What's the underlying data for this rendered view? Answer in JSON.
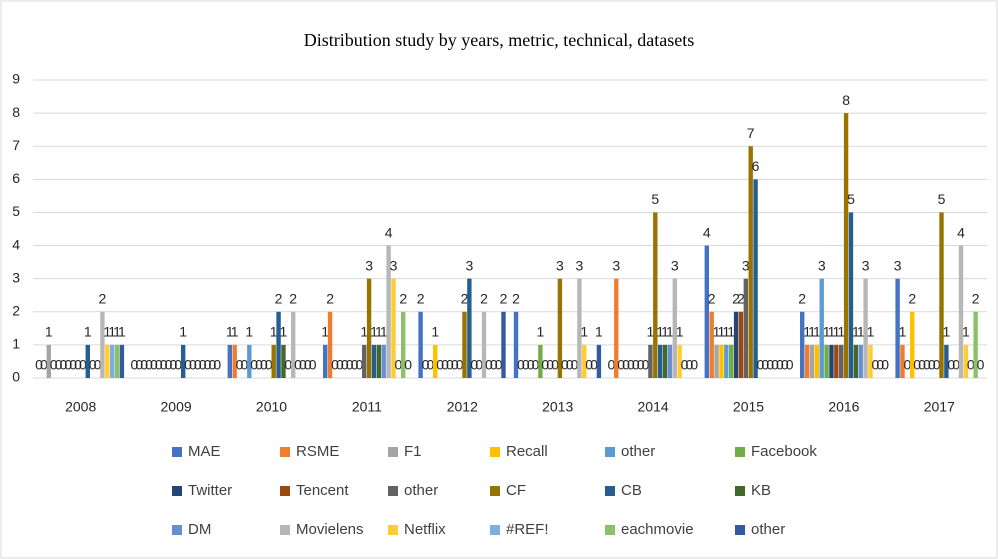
{
  "chart_data": {
    "type": "bar",
    "title": "Distribution study by years, metric, technical, datasets",
    "categories": [
      "2008",
      "2009",
      "2010",
      "2011",
      "2012",
      "2013",
      "2014",
      "2015",
      "2016",
      "2017"
    ],
    "ylim": [
      0,
      9
    ],
    "yticks": [
      0,
      1,
      2,
      3,
      4,
      5,
      6,
      7,
      8,
      9
    ],
    "grid": true,
    "legend": "bottom",
    "series": [
      {
        "name": "MAE",
        "color": "#4472c4",
        "values": [
          0,
          0,
          1,
          1,
          2,
          2,
          0,
          4,
          2,
          3
        ]
      },
      {
        "name": "RSME",
        "color": "#ed7d31",
        "values": [
          0,
          0,
          1,
          2,
          0,
          0,
          3,
          2,
          1,
          1
        ]
      },
      {
        "name": "F1",
        "color": "#a5a5a5",
        "values": [
          1,
          0,
          0,
          0,
          0,
          0,
          0,
          1,
          1,
          0
        ]
      },
      {
        "name": "Recall",
        "color": "#ffc000",
        "values": [
          0,
          0,
          0,
          0,
          1,
          0,
          0,
          1,
          1,
          2
        ]
      },
      {
        "name": "other",
        "color": "#5b9bd5",
        "values": [
          0,
          0,
          1,
          0,
          0,
          0,
          0,
          1,
          3,
          0
        ]
      },
      {
        "name": "Facebook",
        "color": "#70ad47",
        "values": [
          0,
          0,
          0,
          0,
          0,
          1,
          0,
          1,
          1,
          0
        ]
      },
      {
        "name": "Twitter",
        "color": "#264478",
        "values": [
          0,
          0,
          0,
          0,
          0,
          0,
          0,
          2,
          1,
          0
        ]
      },
      {
        "name": "Tencent",
        "color": "#9e480e",
        "values": [
          0,
          0,
          0,
          0,
          0,
          0,
          0,
          2,
          1,
          0
        ]
      },
      {
        "name": "other",
        "color": "#636363",
        "values": [
          0,
          0,
          0,
          1,
          0,
          0,
          1,
          3,
          1,
          0
        ]
      },
      {
        "name": "CF",
        "color": "#997300",
        "values": [
          0,
          0,
          1,
          3,
          2,
          3,
          5,
          7,
          8,
          5
        ]
      },
      {
        "name": "CB",
        "color": "#255e91",
        "values": [
          1,
          1,
          2,
          1,
          3,
          0,
          1,
          6,
          5,
          1
        ]
      },
      {
        "name": "KB",
        "color": "#43682b",
        "values": [
          0,
          0,
          1,
          1,
          0,
          0,
          1,
          0,
          1,
          0
        ]
      },
      {
        "name": "DM",
        "color": "#698ed0",
        "values": [
          0,
          0,
          0,
          1,
          0,
          0,
          1,
          0,
          1,
          0
        ]
      },
      {
        "name": "Movielens",
        "color": "#b7b7b7",
        "values": [
          2,
          0,
          2,
          4,
          2,
          3,
          3,
          0,
          3,
          4
        ]
      },
      {
        "name": "Netflix",
        "color": "#ffcd33",
        "values": [
          1,
          0,
          0,
          3,
          0,
          1,
          1,
          0,
          1,
          1
        ]
      },
      {
        "name": "#REF!",
        "color": "#7cafdd",
        "values": [
          1,
          0,
          0,
          0,
          0,
          0,
          0,
          0,
          0,
          0
        ]
      },
      {
        "name": "eachmovie",
        "color": "#8cc168",
        "values": [
          1,
          0,
          0,
          2,
          0,
          0,
          0,
          0,
          0,
          2
        ]
      },
      {
        "name": "other",
        "color": "#335aa1",
        "values": [
          1,
          0,
          0,
          0,
          2,
          1,
          0,
          0,
          0,
          0
        ]
      }
    ]
  }
}
